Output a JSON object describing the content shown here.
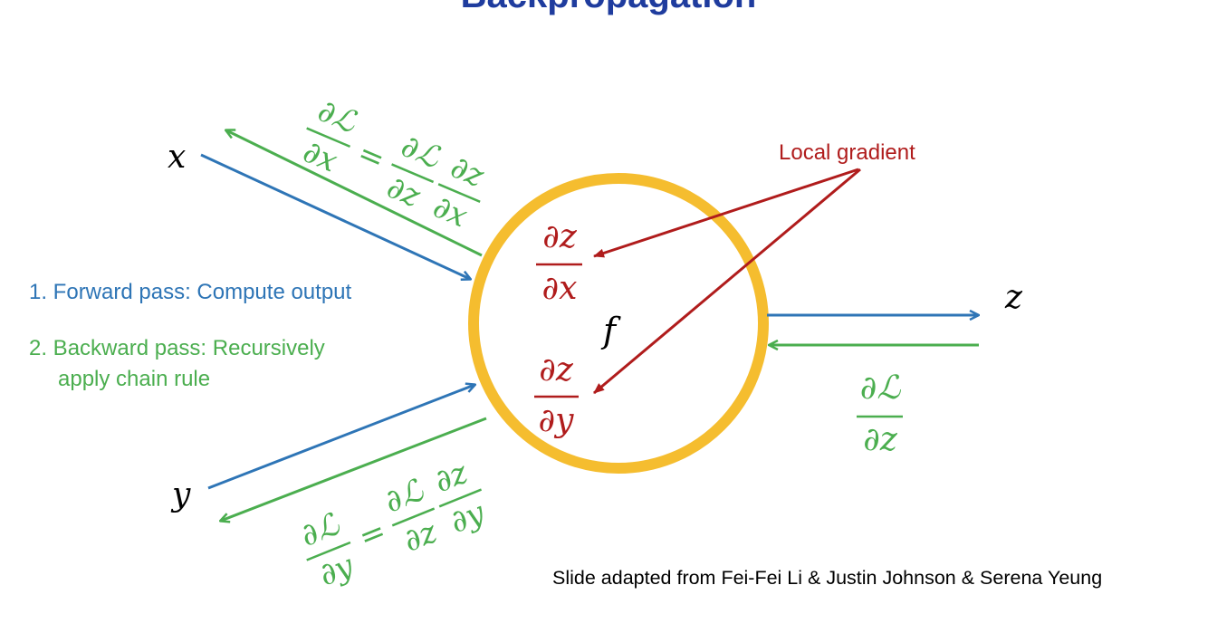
{
  "title": "Backpropagation",
  "colors": {
    "forward": "#2e75b6",
    "backward": "#4bae4f",
    "local": "#b01c1c",
    "node": "#f5bd2f",
    "title": "#1f3c9e"
  },
  "nodes": {
    "input_x": "x",
    "input_y": "y",
    "output_z": "z",
    "function": "f"
  },
  "steps": {
    "forward": "1. Forward pass: Compute output",
    "backward_line1": "2. Backward pass: Recursively",
    "backward_line2": "apply chain rule"
  },
  "annotations": {
    "local_gradient": "Local gradient"
  },
  "math": {
    "partial": "∂",
    "loss": "ℒ",
    "eq": "=",
    "var_x": "x",
    "var_y": "y",
    "var_z": "z"
  },
  "credit": "Slide adapted from Fei-Fei Li & Justin Johnson & Serena Yeung"
}
